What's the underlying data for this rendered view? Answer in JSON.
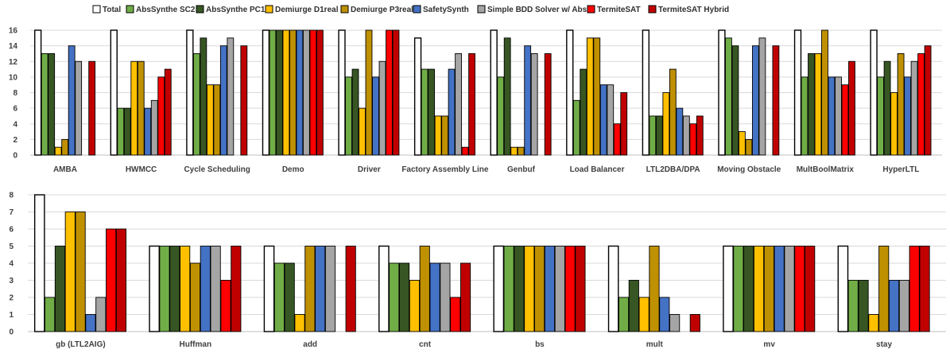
{
  "legend": {
    "placement": "top"
  },
  "colors": {
    "Total": "#ffffff",
    "AbsSynthe SC2": "#70ad47",
    "AbsSynthe PC1": "#375623",
    "Demiurge D1real": "#ffc000",
    "Demiurge P3real": "#bf9000",
    "SafetySynth": "#4472c4",
    "Simple BDD Solver w/ Abs.": "#a5a5a5",
    "TermiteSAT": "#ff0000",
    "TermiteSAT Hybrid": "#c00000"
  },
  "chart_data": [
    {
      "type": "bar",
      "series_names": [
        "Total",
        "AbsSynthe SC2",
        "AbsSynthe PC1",
        "Demiurge D1real",
        "Demiurge P3real",
        "SafetySynth",
        "Simple BDD Solver w/ Abs.",
        "TermiteSAT",
        "TermiteSAT Hybrid"
      ],
      "categories": [
        "AMBA",
        "HWMCC",
        "Cycle Scheduling",
        "Demo",
        "Driver",
        "Factory Assembly Line",
        "Genbuf",
        "Load Balancer",
        "LTL2DBA/DPA",
        "Moving Obstacle",
        "MultBoolMatrix",
        "HyperLTL"
      ],
      "ylim": [
        0,
        16
      ],
      "yticks": [
        "0",
        "2",
        "4",
        "6",
        "8",
        "10",
        "12",
        "14",
        "16"
      ],
      "grid": true,
      "series": [
        {
          "name": "Total",
          "values": [
            16,
            16,
            16,
            16,
            16,
            15,
            16,
            16,
            16,
            16,
            16,
            16
          ]
        },
        {
          "name": "AbsSynthe SC2",
          "values": [
            13,
            6,
            13,
            16,
            10,
            11,
            10,
            7,
            5,
            15,
            10,
            10
          ]
        },
        {
          "name": "AbsSynthe PC1",
          "values": [
            13,
            6,
            15,
            16,
            11,
            11,
            15,
            11,
            5,
            14,
            13,
            12
          ]
        },
        {
          "name": "Demiurge D1real",
          "values": [
            1,
            12,
            9,
            16,
            6,
            5,
            1,
            15,
            8,
            3,
            13,
            8
          ]
        },
        {
          "name": "Demiurge P3real",
          "values": [
            2,
            12,
            9,
            16,
            16,
            5,
            1,
            15,
            11,
            2,
            16,
            13
          ]
        },
        {
          "name": "SafetySynth",
          "values": [
            14,
            6,
            14,
            16,
            10,
            11,
            14,
            9,
            6,
            14,
            10,
            10
          ]
        },
        {
          "name": "Simple BDD Solver w/ Abs.",
          "values": [
            12,
            7,
            15,
            16,
            12,
            13,
            13,
            9,
            5,
            15,
            10,
            12
          ]
        },
        {
          "name": "TermiteSAT",
          "values": [
            0,
            10,
            0,
            16,
            16,
            1,
            0,
            4,
            4,
            0,
            9,
            13
          ]
        },
        {
          "name": "TermiteSAT Hybrid",
          "values": [
            12,
            11,
            14,
            16,
            16,
            13,
            13,
            8,
            5,
            14,
            12,
            14
          ]
        }
      ]
    },
    {
      "type": "bar",
      "series_names": [
        "Total",
        "AbsSynthe SC2",
        "AbsSynthe PC1",
        "Demiurge D1real",
        "Demiurge P3real",
        "SafetySynth",
        "Simple BDD Solver w/ Abs.",
        "TermiteSAT",
        "TermiteSAT Hybrid"
      ],
      "categories": [
        "gb (LTL2AIG)",
        "Huffman",
        "add",
        "cnt",
        "bs",
        "mult",
        "mv",
        "stay"
      ],
      "ylim": [
        0,
        8
      ],
      "yticks": [
        "0",
        "1",
        "2",
        "3",
        "4",
        "5",
        "6",
        "7",
        "8"
      ],
      "grid": true,
      "series": [
        {
          "name": "Total",
          "values": [
            8,
            5,
            5,
            5,
            5,
            5,
            5,
            5
          ]
        },
        {
          "name": "AbsSynthe SC2",
          "values": [
            2,
            5,
            4,
            4,
            5,
            2,
            5,
            3
          ]
        },
        {
          "name": "AbsSynthe PC1",
          "values": [
            5,
            5,
            4,
            4,
            5,
            3,
            5,
            3
          ]
        },
        {
          "name": "Demiurge D1real",
          "values": [
            7,
            5,
            1,
            3,
            5,
            2,
            5,
            1
          ]
        },
        {
          "name": "Demiurge P3real",
          "values": [
            7,
            4,
            5,
            5,
            5,
            5,
            5,
            5
          ]
        },
        {
          "name": "SafetySynth",
          "values": [
            1,
            5,
            5,
            4,
            5,
            2,
            5,
            3
          ]
        },
        {
          "name": "Simple BDD Solver w/ Abs.",
          "values": [
            2,
            5,
            5,
            4,
            5,
            1,
            5,
            3
          ]
        },
        {
          "name": "TermiteSAT",
          "values": [
            6,
            3,
            0,
            2,
            5,
            0,
            5,
            5
          ]
        },
        {
          "name": "TermiteSAT Hybrid",
          "values": [
            6,
            5,
            5,
            4,
            5,
            1,
            5,
            5
          ]
        }
      ]
    }
  ]
}
